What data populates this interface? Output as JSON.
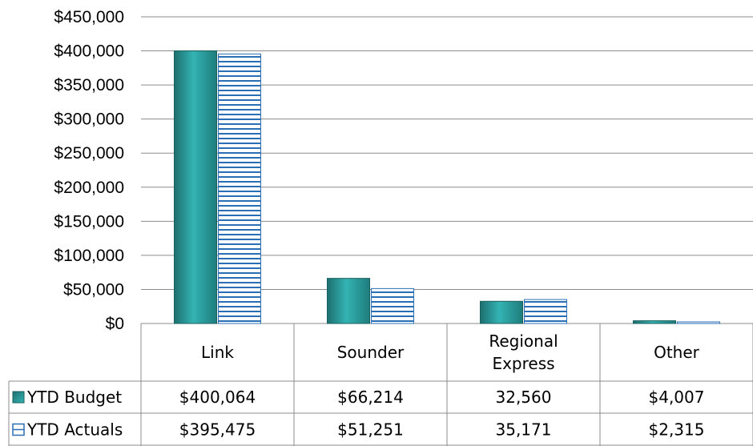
{
  "chart_data": {
    "type": "bar",
    "categories": [
      "Link",
      "Sounder",
      "Regional Express",
      "Other"
    ],
    "category_lines": [
      [
        "Link"
      ],
      [
        "Sounder"
      ],
      [
        "Regional",
        "Express"
      ],
      [
        "Other"
      ]
    ],
    "series": [
      {
        "name": "YTD Budget",
        "values": [
          400064,
          66214,
          32560,
          4007
        ],
        "labels": [
          "$400,064",
          "$66,214",
          "32,560",
          "$4,007"
        ],
        "color": "#2f9e9e",
        "pattern": "solid"
      },
      {
        "name": "YTD Actuals",
        "values": [
          395475,
          51251,
          35171,
          2315
        ],
        "labels": [
          "$395,475",
          "$51,251",
          "35,171",
          "$2,315"
        ],
        "color": "#2a6fb5",
        "pattern": "horizontal-stripes"
      }
    ],
    "ylim": [
      0,
      450000
    ],
    "yticks": [
      0,
      50000,
      100000,
      150000,
      200000,
      250000,
      300000,
      350000,
      400000,
      450000
    ],
    "ytick_labels": [
      "$0",
      "$50,000",
      "$100,000",
      "$150,000",
      "$200,000",
      "$250,000",
      "$300,000",
      "$350,000",
      "$400,000",
      "$450,000"
    ],
    "grid": true,
    "legend": "data-table",
    "title": "",
    "xlabel": "",
    "ylabel": ""
  }
}
